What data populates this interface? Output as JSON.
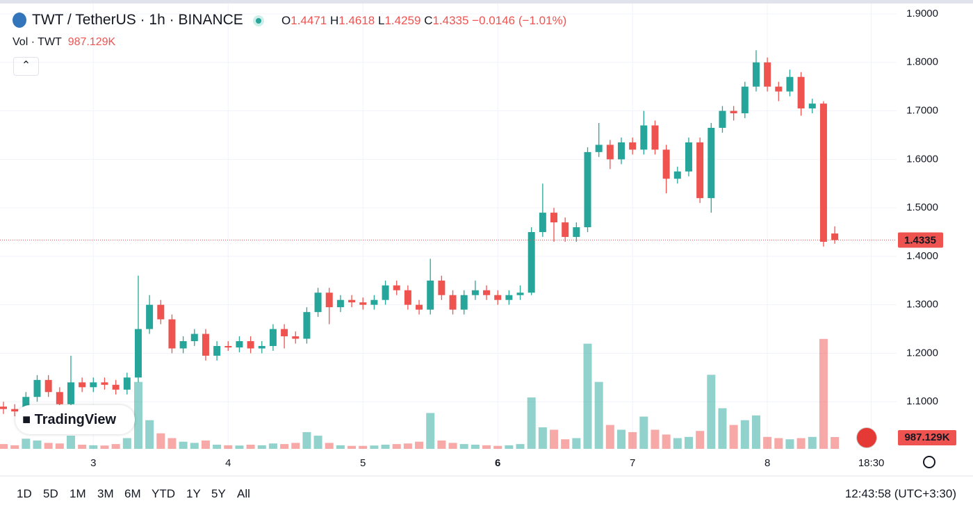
{
  "header": {
    "symbol": "TWT / TetherUS · 1h · BINANCE",
    "ohlc_labels": [
      "O",
      "H",
      "L",
      "C"
    ],
    "change": "−0.0146",
    "change_pct": "(−1.01%)",
    "volume_title": "Vol · TWT"
  },
  "logo": "TradingView",
  "range_buttons": [
    "1D",
    "5D",
    "1M",
    "3M",
    "6M",
    "YTD",
    "1Y",
    "5Y",
    "All"
  ],
  "clock": "12:43:58 (UTC+3:30)",
  "chart_data": {
    "type": "candlestick",
    "up_color": "#26a69a",
    "down_color": "#ef5350",
    "grid": true,
    "x": [
      -16,
      -14,
      -12,
      -10,
      -8,
      -6,
      -4,
      -2,
      0,
      2,
      4,
      6,
      8,
      10,
      12,
      14,
      16,
      18,
      20,
      22,
      24,
      26,
      28,
      30,
      32,
      34,
      36,
      38,
      40,
      42,
      44,
      46,
      48,
      50,
      52,
      54,
      56,
      58,
      60,
      62,
      64,
      66,
      68,
      70,
      72,
      74,
      76,
      78,
      80,
      82,
      84,
      86,
      88,
      90,
      92,
      94,
      96,
      98,
      100,
      102,
      104,
      106,
      108,
      110,
      112,
      114,
      116,
      118,
      120,
      122,
      124,
      126,
      128,
      130,
      132
    ],
    "ohlc": [
      [
        1.09,
        1.1,
        1.075,
        1.085
      ],
      [
        1.085,
        1.095,
        1.07,
        1.08
      ],
      [
        1.08,
        1.12,
        1.075,
        1.11
      ],
      [
        1.11,
        1.155,
        1.1,
        1.145
      ],
      [
        1.145,
        1.155,
        1.11,
        1.12
      ],
      [
        1.12,
        1.13,
        1.085,
        1.095
      ],
      [
        1.095,
        1.195,
        1.09,
        1.14
      ],
      [
        1.14,
        1.15,
        1.12,
        1.13
      ],
      [
        1.13,
        1.15,
        1.12,
        1.14
      ],
      [
        1.14,
        1.15,
        1.125,
        1.135
      ],
      [
        1.135,
        1.145,
        1.115,
        1.125
      ],
      [
        1.125,
        1.16,
        1.115,
        1.15
      ],
      [
        1.15,
        1.36,
        1.14,
        1.25
      ],
      [
        1.25,
        1.32,
        1.24,
        1.3
      ],
      [
        1.3,
        1.31,
        1.26,
        1.27
      ],
      [
        1.27,
        1.28,
        1.2,
        1.21
      ],
      [
        1.21,
        1.235,
        1.2,
        1.225
      ],
      [
        1.225,
        1.25,
        1.215,
        1.24
      ],
      [
        1.24,
        1.25,
        1.185,
        1.195
      ],
      [
        1.195,
        1.225,
        1.185,
        1.215
      ],
      [
        1.215,
        1.225,
        1.205,
        1.212
      ],
      [
        1.212,
        1.235,
        1.202,
        1.225
      ],
      [
        1.225,
        1.235,
        1.2,
        1.21
      ],
      [
        1.21,
        1.225,
        1.2,
        1.215
      ],
      [
        1.215,
        1.26,
        1.205,
        1.25
      ],
      [
        1.25,
        1.26,
        1.21,
        1.235
      ],
      [
        1.235,
        1.245,
        1.22,
        1.23
      ],
      [
        1.23,
        1.295,
        1.22,
        1.285
      ],
      [
        1.285,
        1.335,
        1.275,
        1.325
      ],
      [
        1.325,
        1.335,
        1.26,
        1.295
      ],
      [
        1.295,
        1.32,
        1.285,
        1.31
      ],
      [
        1.31,
        1.32,
        1.295,
        1.305
      ],
      [
        1.305,
        1.315,
        1.29,
        1.3
      ],
      [
        1.3,
        1.32,
        1.29,
        1.31
      ],
      [
        1.31,
        1.35,
        1.3,
        1.34
      ],
      [
        1.34,
        1.35,
        1.32,
        1.33
      ],
      [
        1.33,
        1.34,
        1.29,
        1.3
      ],
      [
        1.3,
        1.31,
        1.28,
        1.29
      ],
      [
        1.29,
        1.395,
        1.28,
        1.35
      ],
      [
        1.35,
        1.36,
        1.31,
        1.32
      ],
      [
        1.32,
        1.33,
        1.28,
        1.29
      ],
      [
        1.29,
        1.33,
        1.28,
        1.32
      ],
      [
        1.32,
        1.35,
        1.31,
        1.33
      ],
      [
        1.33,
        1.34,
        1.31,
        1.32
      ],
      [
        1.32,
        1.33,
        1.3,
        1.31
      ],
      [
        1.31,
        1.33,
        1.3,
        1.32
      ],
      [
        1.32,
        1.34,
        1.31,
        1.325
      ],
      [
        1.325,
        1.46,
        1.32,
        1.45
      ],
      [
        1.45,
        1.55,
        1.44,
        1.49
      ],
      [
        1.49,
        1.5,
        1.43,
        1.47
      ],
      [
        1.47,
        1.48,
        1.43,
        1.44
      ],
      [
        1.44,
        1.47,
        1.43,
        1.46
      ],
      [
        1.46,
        1.625,
        1.45,
        1.615
      ],
      [
        1.615,
        1.675,
        1.605,
        1.63
      ],
      [
        1.63,
        1.64,
        1.58,
        1.6
      ],
      [
        1.6,
        1.645,
        1.59,
        1.635
      ],
      [
        1.635,
        1.645,
        1.61,
        1.62
      ],
      [
        1.62,
        1.7,
        1.61,
        1.67
      ],
      [
        1.67,
        1.68,
        1.61,
        1.62
      ],
      [
        1.62,
        1.63,
        1.53,
        1.56
      ],
      [
        1.56,
        1.585,
        1.55,
        1.575
      ],
      [
        1.575,
        1.645,
        1.565,
        1.635
      ],
      [
        1.635,
        1.645,
        1.51,
        1.52
      ],
      [
        1.52,
        1.675,
        1.49,
        1.665
      ],
      [
        1.665,
        1.71,
        1.655,
        1.7
      ],
      [
        1.7,
        1.71,
        1.68,
        1.695
      ],
      [
        1.695,
        1.76,
        1.685,
        1.75
      ],
      [
        1.75,
        1.825,
        1.74,
        1.8
      ],
      [
        1.8,
        1.81,
        1.74,
        1.75
      ],
      [
        1.75,
        1.76,
        1.72,
        1.74
      ],
      [
        1.74,
        1.785,
        1.73,
        1.77
      ],
      [
        1.77,
        1.78,
        1.69,
        1.705
      ],
      [
        1.705,
        1.725,
        1.695,
        1.715
      ],
      [
        1.715,
        1.72,
        1.42,
        1.43
      ],
      [
        1.4471,
        1.4618,
        1.4259,
        1.4335
      ]
    ],
    "volume": {
      "values": [
        400000,
        300000,
        850000,
        700000,
        500000,
        450000,
        1100000,
        350000,
        300000,
        280000,
        400000,
        900000,
        5600000,
        2400000,
        1300000,
        900000,
        600000,
        500000,
        700000,
        350000,
        300000,
        280000,
        350000,
        300000,
        450000,
        400000,
        500000,
        1400000,
        1100000,
        500000,
        300000,
        250000,
        250000,
        280000,
        350000,
        400000,
        450000,
        600000,
        3000000,
        700000,
        500000,
        400000,
        350000,
        300000,
        250000,
        300000,
        400000,
        4300000,
        1800000,
        1600000,
        800000,
        900000,
        8800000,
        5600000,
        2000000,
        1600000,
        1400000,
        2700000,
        1600000,
        1200000,
        900000,
        1000000,
        1500000,
        6200000,
        3400000,
        2000000,
        2400000,
        2800000,
        1000000,
        900000,
        800000,
        900000,
        1000000,
        9200000,
        987129
      ],
      "last_label": "987.129K",
      "vlim": [
        0,
        17500000
      ]
    },
    "xlim": [
      -16,
      143
    ],
    "xticks": [
      {
        "value": 0,
        "label": "3"
      },
      {
        "value": 24,
        "label": "4"
      },
      {
        "value": 48,
        "label": "5"
      },
      {
        "value": 72,
        "label": "6"
      },
      {
        "value": 96,
        "label": "7"
      },
      {
        "value": 120,
        "label": "8"
      },
      {
        "value": 138.5,
        "label": "18:30"
      }
    ],
    "ylim": [
      1.0,
      1.9215
    ],
    "yticks": [
      {
        "value": 1.1,
        "label": "1.1000"
      },
      {
        "value": 1.2,
        "label": "1.2000"
      },
      {
        "value": 1.3,
        "label": "1.3000"
      },
      {
        "value": 1.4,
        "label": "1.4000"
      },
      {
        "value": 1.5,
        "label": "1.5000"
      },
      {
        "value": 1.6,
        "label": "1.6000"
      },
      {
        "value": 1.7,
        "label": "1.7000"
      },
      {
        "value": 1.8,
        "label": "1.8000"
      },
      {
        "value": 1.9,
        "label": "1.9000"
      }
    ]
  }
}
